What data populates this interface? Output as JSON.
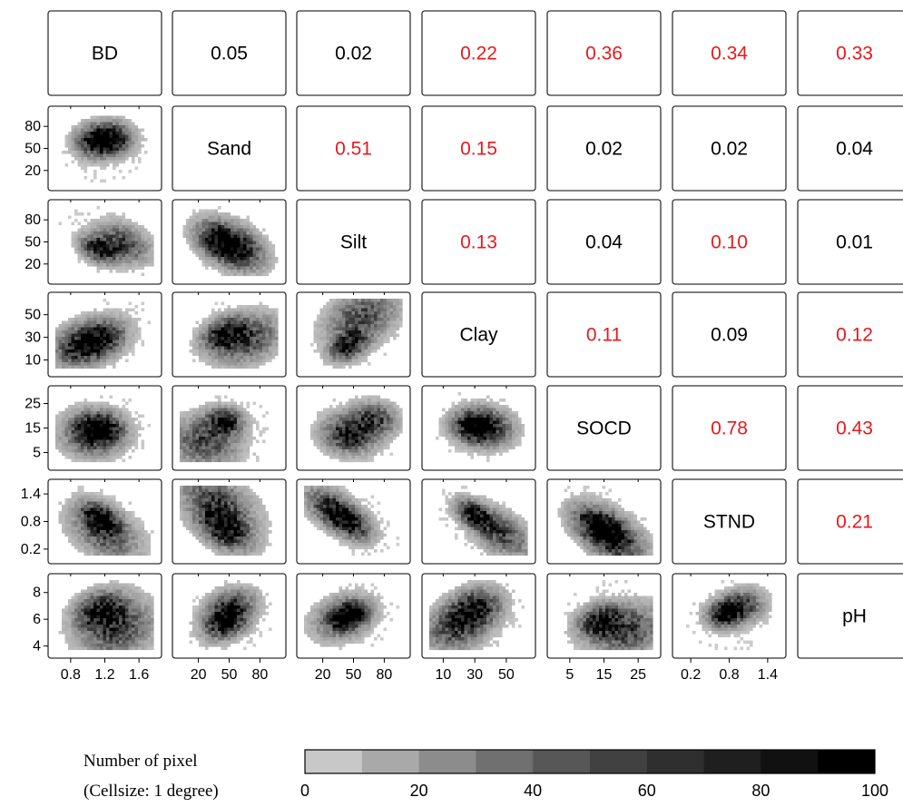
{
  "chart_data": {
    "type": "heatmap",
    "variables": [
      "BD",
      "Sand",
      "Silt",
      "Clay",
      "SOCD",
      "STND",
      "pH"
    ],
    "correlations": [
      {
        "row": 0,
        "col": 1,
        "value": "0.05",
        "significant": false
      },
      {
        "row": 0,
        "col": 2,
        "value": "0.02",
        "significant": false
      },
      {
        "row": 0,
        "col": 3,
        "value": "0.22",
        "significant": true
      },
      {
        "row": 0,
        "col": 4,
        "value": "0.36",
        "significant": true
      },
      {
        "row": 0,
        "col": 5,
        "value": "0.34",
        "significant": true
      },
      {
        "row": 0,
        "col": 6,
        "value": "0.33",
        "significant": true
      },
      {
        "row": 1,
        "col": 2,
        "value": "0.51",
        "significant": true
      },
      {
        "row": 1,
        "col": 3,
        "value": "0.15",
        "significant": true
      },
      {
        "row": 1,
        "col": 4,
        "value": "0.02",
        "significant": false
      },
      {
        "row": 1,
        "col": 5,
        "value": "0.02",
        "significant": false
      },
      {
        "row": 1,
        "col": 6,
        "value": "0.04",
        "significant": false
      },
      {
        "row": 2,
        "col": 3,
        "value": "0.13",
        "significant": true
      },
      {
        "row": 2,
        "col": 4,
        "value": "0.04",
        "significant": false
      },
      {
        "row": 2,
        "col": 5,
        "value": "0.10",
        "significant": true
      },
      {
        "row": 2,
        "col": 6,
        "value": "0.01",
        "significant": false
      },
      {
        "row": 3,
        "col": 4,
        "value": "0.11",
        "significant": true
      },
      {
        "row": 3,
        "col": 5,
        "value": "0.09",
        "significant": false
      },
      {
        "row": 3,
        "col": 6,
        "value": "0.12",
        "significant": true
      },
      {
        "row": 4,
        "col": 5,
        "value": "0.78",
        "significant": true
      },
      {
        "row": 4,
        "col": 6,
        "value": "0.43",
        "significant": true
      },
      {
        "row": 5,
        "col": 6,
        "value": "0.21",
        "significant": true
      }
    ],
    "axes": {
      "BD": {
        "range": [
          0.6,
          1.8
        ],
        "ticks": [
          "0.8",
          "1.2",
          "1.6"
        ],
        "tick_values": [
          0.8,
          1.2,
          1.6
        ]
      },
      "Sand": {
        "range": [
          0,
          100
        ],
        "ticks": [
          "20",
          "50",
          "80"
        ],
        "tick_values": [
          20,
          50,
          80
        ]
      },
      "Silt": {
        "range": [
          0,
          100
        ],
        "ticks": [
          "20",
          "50",
          "80"
        ],
        "tick_values": [
          20,
          50,
          80
        ]
      },
      "Clay": {
        "range": [
          0,
          65
        ],
        "ticks": [
          "10",
          "30",
          "50"
        ],
        "tick_values": [
          10,
          30,
          50
        ]
      },
      "SOCD": {
        "range": [
          0,
          30
        ],
        "ticks": [
          "5",
          "15",
          "25"
        ],
        "tick_values": [
          5,
          15,
          25
        ]
      },
      "STND": {
        "range": [
          0,
          1.6
        ],
        "ticks": [
          "0.2",
          "0.8",
          "1.4"
        ],
        "tick_values": [
          0.2,
          0.8,
          1.4
        ]
      },
      "pH": {
        "range": [
          3.5,
          9
        ],
        "ticks": [
          "4",
          "6",
          "8"
        ],
        "tick_values": [
          4,
          6,
          8
        ]
      }
    },
    "grid": false,
    "legend": {
      "title_line1": "Number of pixel",
      "title_line2": "(Cellsize: 1 degree)",
      "ticks": [
        "0",
        "20",
        "40",
        "60",
        "80",
        "100"
      ],
      "tick_values": [
        0,
        20,
        40,
        60,
        80,
        100
      ],
      "range": [
        0,
        100
      ],
      "bins": 10
    }
  },
  "colors": {
    "significant": "#e8191d",
    "not_significant": "#000000",
    "legend_bins": [
      "#c8c8c8",
      "#a9a9a9",
      "#8c8c8c",
      "#707070",
      "#575757",
      "#414141",
      "#2f2f2f",
      "#1f1f1f",
      "#111111",
      "#000000"
    ]
  }
}
